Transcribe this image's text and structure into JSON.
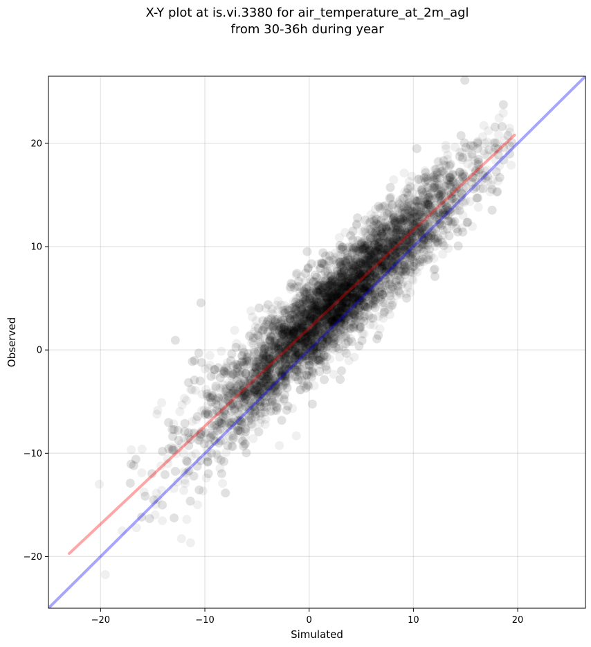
{
  "chart_data": {
    "type": "scatter",
    "title_lines": [
      "X-Y plot at is.vi.3380 for air_temperature_at_2m_agl",
      "from 30-36h during year"
    ],
    "xlabel": "Simulated",
    "ylabel": "Observed",
    "xlim": [
      -25,
      26.5
    ],
    "ylim": [
      -25,
      26.5
    ],
    "xticks": [
      -20,
      -10,
      0,
      10,
      20
    ],
    "yticks": [
      -20,
      -10,
      0,
      10,
      20
    ],
    "xtick_labels": [
      "−20",
      "−10",
      "0",
      "10",
      "20"
    ],
    "ytick_labels": [
      "−20",
      "−10",
      "0",
      "10",
      "20"
    ],
    "grid": true,
    "point_color": "#000000",
    "point_alpha": 0.06,
    "reference_lines": [
      {
        "kind": "identity",
        "color": "#0000ff",
        "alpha": 0.35,
        "x": [
          -25,
          26.5
        ],
        "y": [
          -25,
          26.5
        ]
      },
      {
        "kind": "fit",
        "color": "#ff0000",
        "alpha": 0.35,
        "x": [
          -23,
          19.7
        ],
        "y": [
          -19.7,
          20.8
        ]
      }
    ],
    "point_cloud": {
      "count": 6000,
      "x_range": [
        -23,
        19.5
      ],
      "fit_slope": 0.948,
      "fit_intercept": 2.1,
      "residual_sd": 2.3,
      "x_mean": 2.5,
      "x_sd": 6.5
    }
  }
}
